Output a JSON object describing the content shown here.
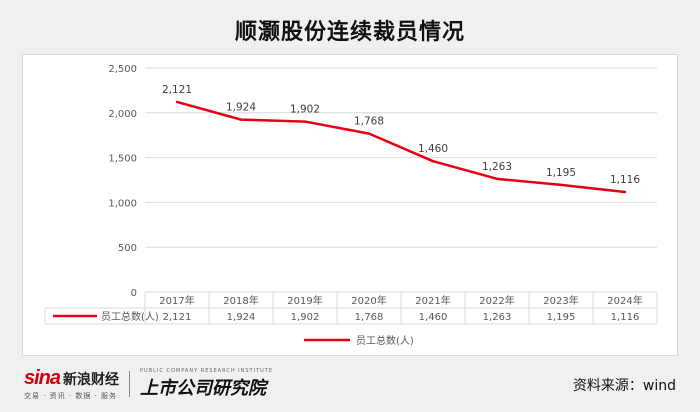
{
  "title": "顺灏股份连续裁员情况",
  "branding": {
    "sina_logo_text": "sina",
    "sina_name": "新浪财经",
    "sina_tagline": "交易 · 资讯 · 数据 · 服务",
    "institute_name": "上市公司研究院",
    "institute_tagline": "PUBLIC COMPANY RESEARCH INSTITUTE"
  },
  "source": "资料来源：wind",
  "colors": {
    "line": "#e60012",
    "grid": "#d9d9d9",
    "axis_text": "#595959"
  },
  "chart_data": {
    "type": "line",
    "categories": [
      "2017年",
      "2018年",
      "2019年",
      "2020年",
      "2021年",
      "2022年",
      "2023年",
      "2024年"
    ],
    "series": [
      {
        "name": "员工总数(人)",
        "values": [
          2121,
          1924,
          1902,
          1768,
          1460,
          1263,
          1195,
          1116
        ]
      }
    ],
    "value_labels": [
      "2,121",
      "1,924",
      "1,902",
      "1,768",
      "1,460",
      "1,263",
      "1,195",
      "1,116"
    ],
    "yticks": [
      "0",
      "500",
      "1,000",
      "1,500",
      "2,000",
      "2,500"
    ],
    "ylim": [
      0,
      2500
    ],
    "grid": true,
    "data_table": true,
    "legend": "bottom"
  }
}
